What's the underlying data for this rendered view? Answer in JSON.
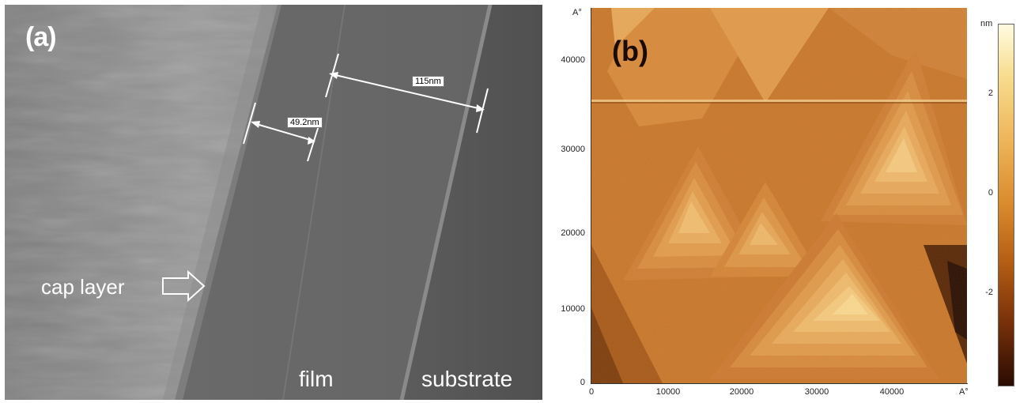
{
  "panel_a": {
    "label": "(a)",
    "annotations": {
      "cap_layer": "cap layer",
      "film": "film",
      "substrate": "substrate"
    },
    "measurements": [
      "49.2nm",
      "115nm"
    ]
  },
  "panel_b": {
    "label": "(b)",
    "y_unit": "A°",
    "x_unit": "A°",
    "y_ticks": [
      "40000",
      "30000",
      "20000",
      "10000",
      "0"
    ],
    "x_ticks": [
      "0",
      "10000",
      "20000",
      "30000",
      "40000"
    ],
    "colorbar": {
      "unit": "nm",
      "ticks": [
        "2",
        "0",
        "-2"
      ]
    }
  }
}
